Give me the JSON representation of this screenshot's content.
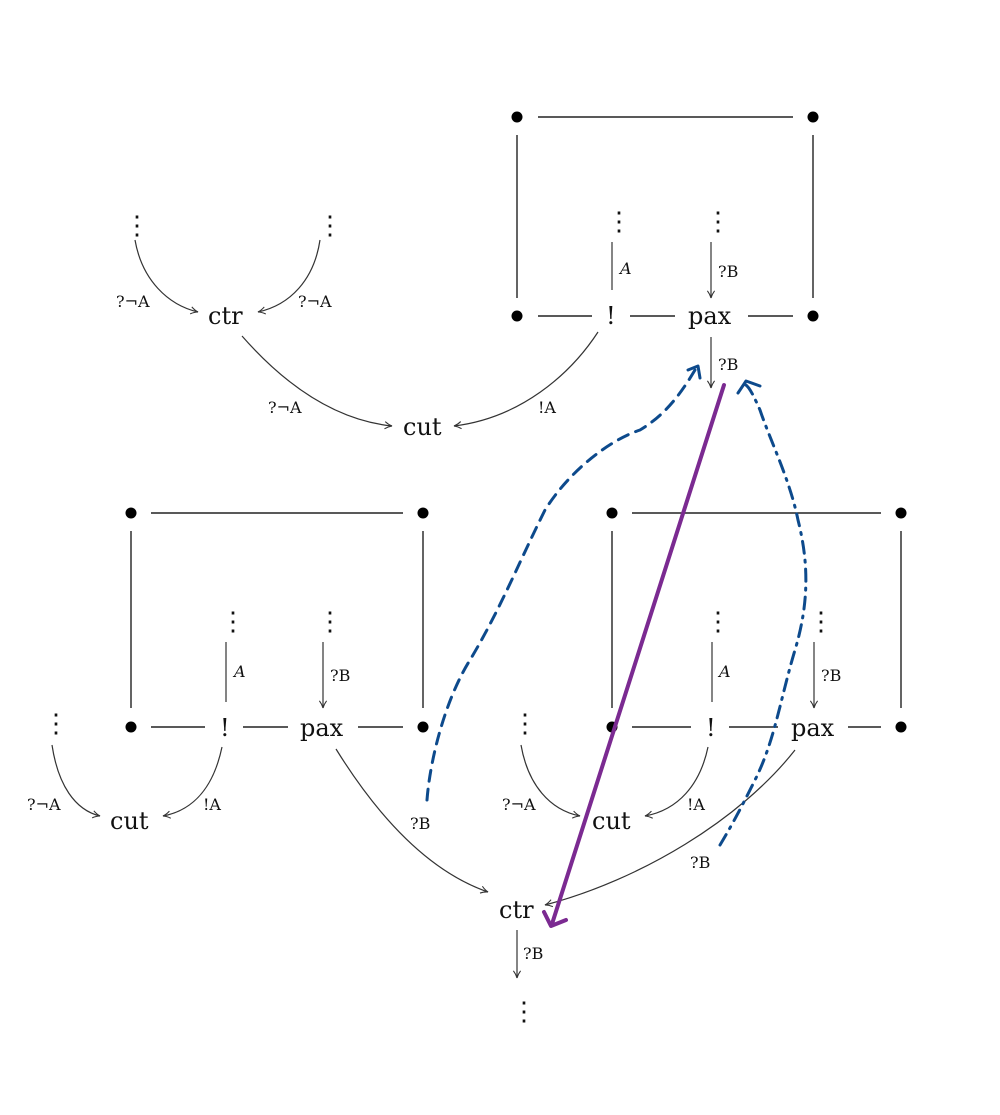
{
  "nodes": {
    "ctr_top": "ctr",
    "cut_top": "cut",
    "bang_top": "!",
    "pax_top": "pax",
    "bang_left": "!",
    "pax_left": "pax",
    "cut_left": "cut",
    "bang_right": "!",
    "pax_right": "pax",
    "cut_right": "cut",
    "ctr_bottom": "ctr"
  },
  "labels": {
    "ctr_top_in_left": "?¬A",
    "ctr_top_in_right": "?¬A",
    "ctr_top_out": "?¬A",
    "cut_top_right": "!A",
    "bang_top_in": "A",
    "pax_top_in": "?B",
    "pax_top_out": "?B",
    "bang_left_in": "A",
    "pax_left_in": "?B",
    "cut_left_in_left": "?¬A",
    "cut_left_in_right": "!A",
    "pax_left_out": "?B",
    "bang_right_in": "A",
    "pax_right_in": "?B",
    "cut_right_in_left": "?¬A",
    "cut_right_in_right": "!A",
    "pax_right_out": "?B",
    "ctr_bottom_out": "?B"
  },
  "vdots": "⋮",
  "colors": {
    "dashed_path": "#0d4a8c",
    "solid_arrow": "#7b2a91"
  }
}
